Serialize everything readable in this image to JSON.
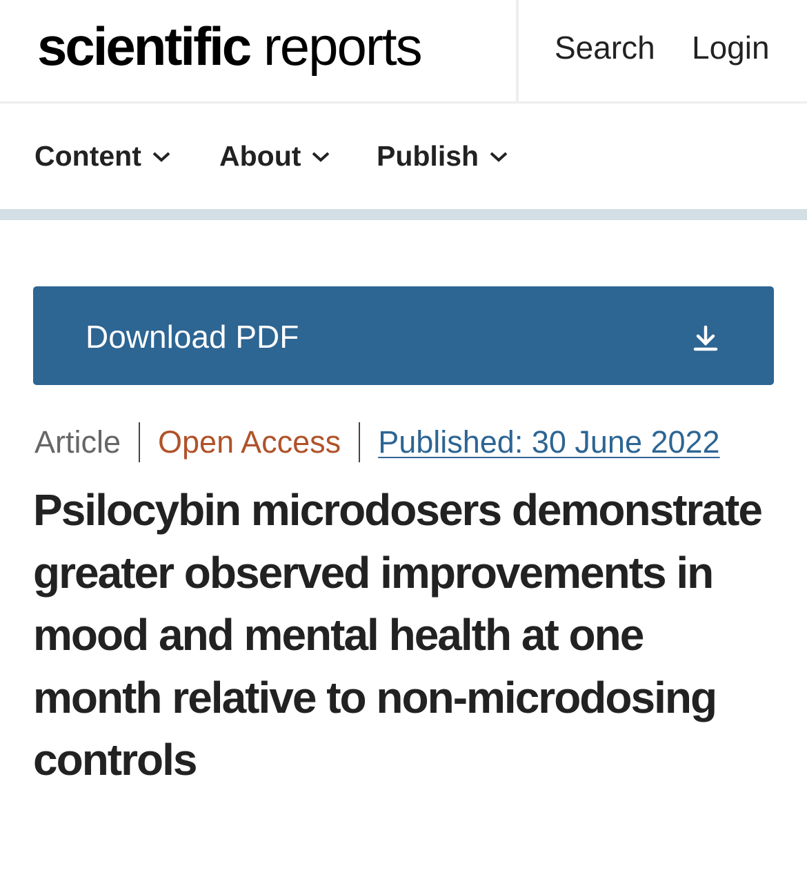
{
  "header": {
    "logo_bold": "scientific",
    "logo_light": "reports",
    "search": "Search",
    "login": "Login"
  },
  "nav": {
    "items": [
      {
        "label": "Content"
      },
      {
        "label": "About"
      },
      {
        "label": "Publish"
      }
    ]
  },
  "download": {
    "label": "Download PDF",
    "icon": "download-icon"
  },
  "meta": {
    "type": "Article",
    "access": "Open Access",
    "published": "Published: 30 June 2022"
  },
  "article": {
    "title": "Psilocybin microdosers demonstrate greater observed improvements in mood and mental health at one month relative to non-microdosing controls"
  },
  "colors": {
    "brand_blue": "#2d6593",
    "open_access": "#b0532a",
    "bar": "#d3dfe5"
  }
}
